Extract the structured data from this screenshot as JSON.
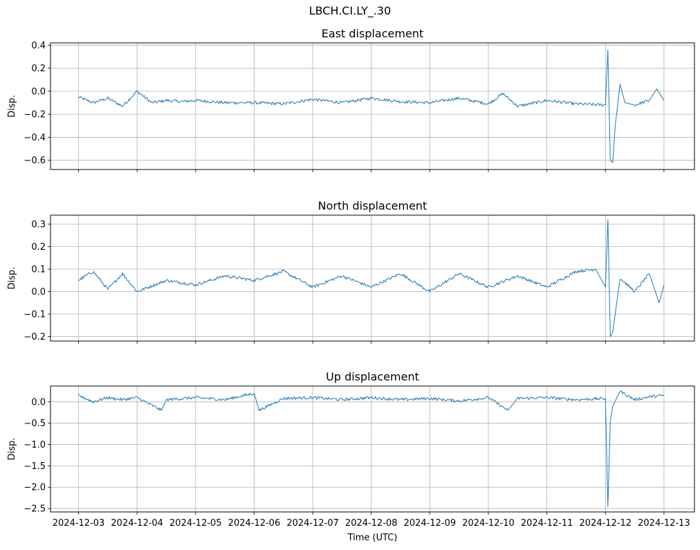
{
  "figure": {
    "suptitle": "LBCH.CI.LY_.30"
  },
  "chart_data": [
    {
      "type": "line",
      "title": "East displacement",
      "ylabel": "Disp.",
      "xlabel": "",
      "ylim": [
        -0.68,
        0.42
      ],
      "yticks": [
        -0.6,
        -0.4,
        -0.2,
        0.0,
        0.2,
        0.4
      ],
      "ytick_labels": [
        "−0.6",
        "−0.4",
        "−0.2",
        "0.0",
        "0.2",
        "0.4"
      ],
      "grid": true,
      "series": [
        {
          "color": "#1f77b4",
          "x": [
            "2024-12-03",
            "2024-12-03T06",
            "2024-12-03T12",
            "2024-12-03T18",
            "2024-12-04",
            "2024-12-04T06",
            "2024-12-04T12",
            "2024-12-04T18",
            "2024-12-05",
            "2024-12-05T12",
            "2024-12-06",
            "2024-12-06T12",
            "2024-12-07",
            "2024-12-07T12",
            "2024-12-08",
            "2024-12-08T12",
            "2024-12-09",
            "2024-12-09T12",
            "2024-12-10",
            "2024-12-10T06",
            "2024-12-10T12",
            "2024-12-11",
            "2024-12-11T12",
            "2024-12-12",
            "2024-12-12T01",
            "2024-12-12T02",
            "2024-12-12T03",
            "2024-12-12T04",
            "2024-12-12T06",
            "2024-12-12T08",
            "2024-12-12T12",
            "2024-12-12T18",
            "2024-12-12T21",
            "2024-12-13"
          ],
          "y": [
            -0.05,
            -0.1,
            -0.06,
            -0.13,
            0.0,
            -0.1,
            -0.08,
            -0.09,
            -0.08,
            -0.1,
            -0.1,
            -0.11,
            -0.07,
            -0.1,
            -0.06,
            -0.09,
            -0.1,
            -0.06,
            -0.11,
            -0.02,
            -0.13,
            -0.08,
            -0.11,
            -0.12,
            0.36,
            -0.6,
            -0.62,
            -0.3,
            0.06,
            -0.1,
            -0.12,
            -0.08,
            0.02,
            -0.08
          ]
        }
      ]
    },
    {
      "type": "line",
      "title": "North displacement",
      "ylabel": "Disp.",
      "xlabel": "",
      "ylim": [
        -0.22,
        0.34
      ],
      "yticks": [
        -0.2,
        -0.1,
        0.0,
        0.1,
        0.2,
        0.3
      ],
      "ytick_labels": [
        "−0.2",
        "−0.1",
        "0.0",
        "0.1",
        "0.2",
        "0.3"
      ],
      "grid": true,
      "series": [
        {
          "color": "#1f77b4",
          "x": [
            "2024-12-03",
            "2024-12-03T06",
            "2024-12-03T12",
            "2024-12-03T18",
            "2024-12-04",
            "2024-12-04T12",
            "2024-12-05",
            "2024-12-05T12",
            "2024-12-06",
            "2024-12-06T12",
            "2024-12-07",
            "2024-12-07T12",
            "2024-12-08",
            "2024-12-08T12",
            "2024-12-09",
            "2024-12-09T12",
            "2024-12-10",
            "2024-12-10T12",
            "2024-12-11",
            "2024-12-11T12",
            "2024-12-11T20",
            "2024-12-12",
            "2024-12-12T01",
            "2024-12-12T02",
            "2024-12-12T03",
            "2024-12-12T06",
            "2024-12-12T12",
            "2024-12-12T18",
            "2024-12-12T22",
            "2024-12-13"
          ],
          "y": [
            0.05,
            0.09,
            0.01,
            0.08,
            0.0,
            0.05,
            0.03,
            0.07,
            0.05,
            0.09,
            0.02,
            0.07,
            0.02,
            0.08,
            0.0,
            0.08,
            0.02,
            0.07,
            0.02,
            0.09,
            0.1,
            0.02,
            0.32,
            -0.2,
            -0.18,
            0.06,
            0.0,
            0.08,
            -0.05,
            0.03
          ]
        }
      ]
    },
    {
      "type": "line",
      "title": "Up displacement",
      "ylabel": "Disp.",
      "xlabel": "Time (UTC)",
      "ylim": [
        -2.58,
        0.37
      ],
      "yticks": [
        -2.5,
        -2.0,
        -1.5,
        -1.0,
        -0.5,
        0.0
      ],
      "ytick_labels": [
        "−2.5",
        "−2.0",
        "−1.5",
        "−1.0",
        "−0.5",
        "0.0"
      ],
      "grid": true,
      "series": [
        {
          "color": "#1f77b4",
          "x": [
            "2024-12-03",
            "2024-12-03T06",
            "2024-12-03T12",
            "2024-12-03T18",
            "2024-12-04",
            "2024-12-04T10",
            "2024-12-04T12",
            "2024-12-05",
            "2024-12-05T12",
            "2024-12-06",
            "2024-12-06T02",
            "2024-12-06T12",
            "2024-12-07",
            "2024-12-07T12",
            "2024-12-08",
            "2024-12-08T12",
            "2024-12-09",
            "2024-12-09T12",
            "2024-12-10",
            "2024-12-10T08",
            "2024-12-10T12",
            "2024-12-11",
            "2024-12-11T12",
            "2024-12-12",
            "2024-12-12T01",
            "2024-12-12T02",
            "2024-12-12T03",
            "2024-12-12T06",
            "2024-12-12T12",
            "2024-12-12T18",
            "2024-12-13"
          ],
          "y": [
            0.15,
            0.0,
            0.1,
            0.05,
            0.1,
            -0.2,
            0.05,
            0.1,
            0.05,
            0.2,
            -0.2,
            0.08,
            0.1,
            0.05,
            0.1,
            0.05,
            0.08,
            0.02,
            0.1,
            -0.2,
            0.08,
            0.1,
            0.05,
            0.08,
            -2.45,
            -0.45,
            -0.1,
            0.25,
            0.05,
            0.12,
            0.15
          ]
        }
      ]
    }
  ],
  "shared_x": {
    "range": [
      "2024-12-02T12:30",
      "2024-12-13T12:30"
    ],
    "ticks": [
      "2024-12-03",
      "2024-12-04",
      "2024-12-05",
      "2024-12-06",
      "2024-12-07",
      "2024-12-08",
      "2024-12-09",
      "2024-12-10",
      "2024-12-11",
      "2024-12-12",
      "2024-12-13"
    ],
    "tick_labels": [
      "2024-12-03",
      "2024-12-04",
      "2024-12-05",
      "2024-12-06",
      "2024-12-07",
      "2024-12-08",
      "2024-12-09",
      "2024-12-10",
      "2024-12-11",
      "2024-12-12",
      "2024-12-13"
    ]
  }
}
